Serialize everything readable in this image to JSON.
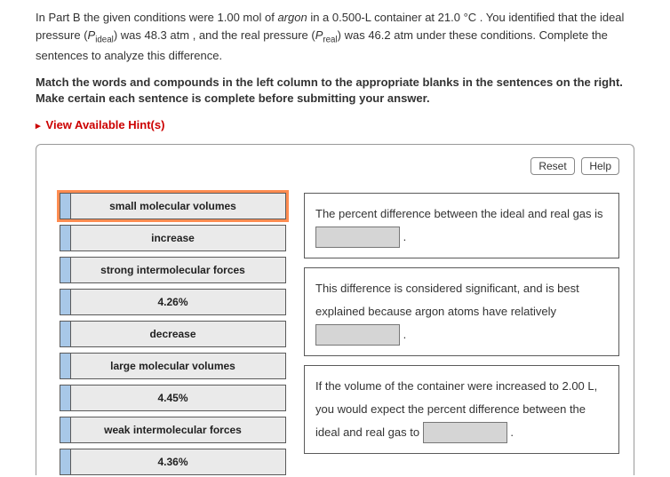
{
  "intro": {
    "prefix": "In Part B the given conditions were 1.00 ",
    "unit1": "mol",
    "of": " of ",
    "gas": "argon",
    "in_a": " in a 0.500-",
    "unit2": "L",
    "container_at": " container at 21.0 ",
    "deg": "°C",
    "sentence2a": " . You identified that the ideal pressure (",
    "p": "P",
    "ideal_sub": "ideal",
    "sentence2b": ") was 48.3 ",
    "atm": "atm",
    "sentence2c": " , and the real pressure (",
    "real_sub": "real",
    "sentence2d": ") was 46.2 ",
    "sentence2e": " under these conditions. Complete the sentences to analyze this difference."
  },
  "instruction": "Match the words and compounds in the left column to the appropriate blanks in the sentences on the right. Make certain each sentence is complete before submitting your answer.",
  "hints_label": "View Available Hint(s)",
  "buttons": {
    "reset": "Reset",
    "help": "Help"
  },
  "drag_items": [
    {
      "label": "small molecular volumes",
      "selected": true
    },
    {
      "label": "increase",
      "selected": false
    },
    {
      "label": "strong intermolecular forces",
      "selected": false
    },
    {
      "label": "4.26%",
      "selected": false
    },
    {
      "label": "decrease",
      "selected": false
    },
    {
      "label": "large molecular volumes",
      "selected": false
    },
    {
      "label": "4.45%",
      "selected": false
    },
    {
      "label": "weak intermolecular forces",
      "selected": false
    },
    {
      "label": "4.36%",
      "selected": false
    }
  ],
  "sentences": {
    "s1a": "The percent difference between the ideal and real gas is ",
    "s1b": " .",
    "s2a": "This difference is considered significant, and is best explained because argon atoms have relatively ",
    "s2b": " .",
    "s3a": "If the volume of the container were increased to 2.00 ",
    "s3L": "L",
    "s3b": ", you would expect the percent difference between the ideal and real gas to ",
    "s3c": " ."
  }
}
